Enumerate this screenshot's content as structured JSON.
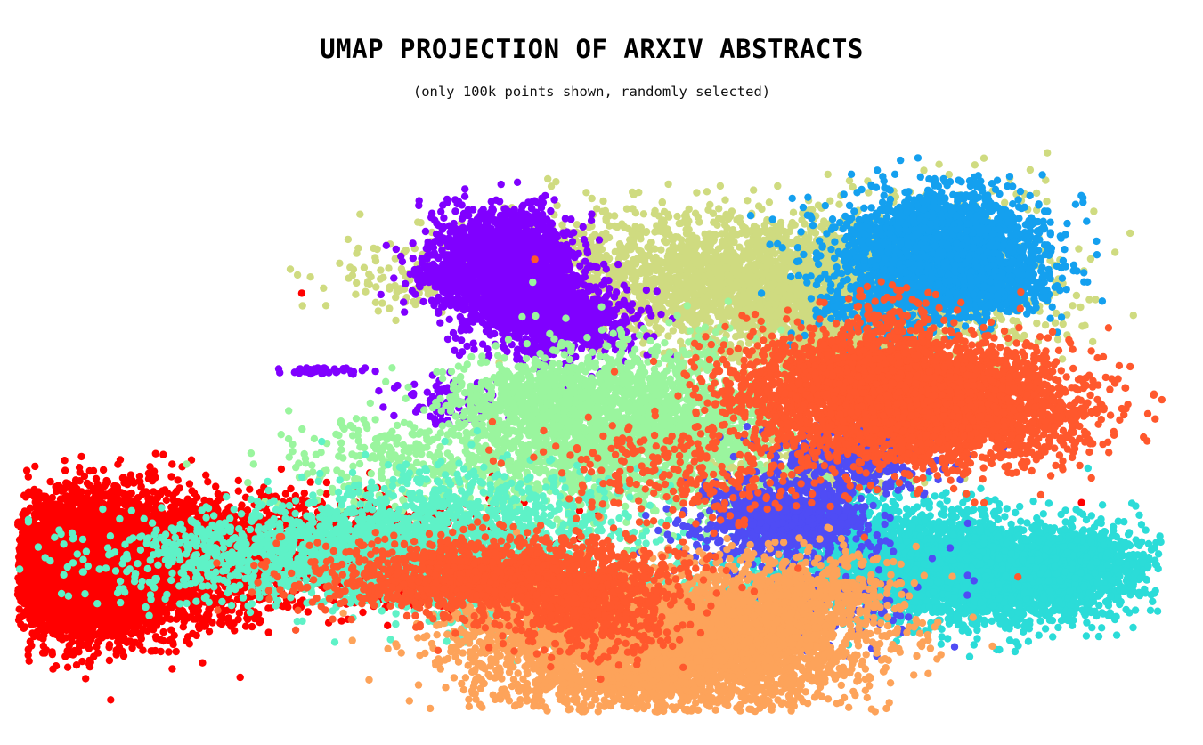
{
  "chart_data": {
    "type": "scatter",
    "title": "UMAP PROJECTION OF ARXIV ABSTRACTS",
    "subtitle": "(only 100k points shown, randomly selected)",
    "xlabel": "",
    "ylabel": "",
    "grid": false,
    "axes_visible": false,
    "legend": "none",
    "xlim": [
      -3.0,
      10.5
    ],
    "ylim": [
      -2.0,
      6.3
    ],
    "series": [
      {
        "color": "#8000ff",
        "points": [
          [
            2.93,
            4.95
          ],
          [
            2.53,
            4.9
          ],
          [
            2.99,
            4.16
          ],
          [
            2.23,
            4.53
          ],
          [
            2.1,
            3.03
          ],
          [
            2.42,
            2.87
          ],
          [
            0.33,
            3.04
          ]
        ],
        "clusters": [
          [
            2.7,
            4.65,
            0.42,
            0.38,
            1700
          ],
          [
            3.45,
            3.8,
            0.45,
            0.28,
            700
          ],
          [
            3.0,
            4.1,
            0.35,
            0.3,
            500
          ],
          [
            1.9,
            4.45,
            0.15,
            0.08,
            60
          ],
          [
            0.6,
            3.05,
            0.25,
            0.03,
            40
          ],
          [
            2.1,
            2.6,
            0.35,
            0.2,
            90
          ]
        ]
      },
      {
        "color": "#4f4cf5",
        "points": [
          [
            6.0,
            0.56
          ],
          [
            6.2,
            -0.57
          ],
          [
            4.3,
            -1.05
          ],
          [
            8.0,
            0.43
          ]
        ],
        "clusters": [
          [
            6.05,
            0.86,
            0.5,
            0.28,
            1000
          ],
          [
            6.9,
            1.75,
            0.5,
            0.25,
            400
          ],
          [
            6.5,
            -0.3,
            0.7,
            0.35,
            160
          ]
        ]
      },
      {
        "color": "#14a0ef",
        "points": [
          [
            8.0,
            5.85
          ],
          [
            8.5,
            4.25
          ],
          [
            7.5,
            3.8
          ]
        ],
        "clusters": [
          [
            7.9,
            4.95,
            0.6,
            0.38,
            1800
          ],
          [
            8.35,
            4.25,
            0.45,
            0.25,
            500
          ],
          [
            7.3,
            4.1,
            0.45,
            0.35,
            400
          ]
        ]
      },
      {
        "color": "#2bdcd8",
        "points": [
          [
            6.55,
            0.7
          ],
          [
            6.0,
            -0.05
          ],
          [
            9.5,
            0.55
          ]
        ],
        "clusters": [
          [
            8.4,
            0.05,
            0.85,
            0.36,
            3000
          ],
          [
            7.0,
            0.4,
            0.7,
            0.4,
            1000
          ],
          [
            9.5,
            0.2,
            0.45,
            0.25,
            500
          ]
        ]
      },
      {
        "color": "#5ef2c7",
        "points": [
          [
            -0.45,
            1.0
          ],
          [
            4.7,
            1.35
          ],
          [
            3.3,
            0.4
          ]
        ],
        "clusters": [
          [
            0.8,
            0.3,
            1.4,
            0.35,
            1500
          ],
          [
            2.3,
            0.8,
            1.0,
            0.45,
            800
          ],
          [
            3.8,
            -0.4,
            0.9,
            0.3,
            600
          ]
        ]
      },
      {
        "color": "#9af59e",
        "points": [
          [
            2.9,
            2.05
          ],
          [
            7.6,
            -0.65
          ],
          [
            1.3,
            0.95
          ]
        ],
        "clusters": [
          [
            4.3,
            2.2,
            0.85,
            0.6,
            2200
          ],
          [
            3.1,
            2.65,
            0.5,
            0.25,
            500
          ],
          [
            2.2,
            1.7,
            1.0,
            0.4,
            500
          ]
        ]
      },
      {
        "color": "#cfdb80",
        "points": [
          [
            3.35,
            5.85
          ],
          [
            5.3,
            3.7
          ],
          [
            0.3,
            4.47
          ]
        ],
        "clusters": [
          [
            5.9,
            4.35,
            1.35,
            0.5,
            2800
          ],
          [
            6.5,
            3.6,
            0.6,
            0.4,
            600
          ],
          [
            7.6,
            4.4,
            0.9,
            0.8,
            300
          ],
          [
            3.4,
            4.8,
            0.75,
            0.3,
            200
          ],
          [
            1.8,
            4.4,
            0.6,
            0.25,
            120
          ],
          [
            6.2,
            1.5,
            0.6,
            0.25,
            250
          ]
        ]
      },
      {
        "color": "#fda35a",
        "points": [
          [
            4.6,
            -1.85
          ],
          [
            3.4,
            -1.5
          ],
          [
            7.0,
            -0.7
          ]
        ],
        "clusters": [
          [
            4.5,
            -1.1,
            1.1,
            0.5,
            3200
          ],
          [
            5.6,
            -0.7,
            0.8,
            0.45,
            1200
          ],
          [
            3.1,
            -0.6,
            0.6,
            0.3,
            400
          ],
          [
            6.4,
            -0.2,
            0.5,
            0.3,
            300
          ]
        ]
      },
      {
        "color": "#ff582d",
        "points": [
          [
            3.1,
            4.7
          ],
          [
            7.85,
            1.5
          ],
          [
            8.8,
            0.0
          ]
        ],
        "clusters": [
          [
            7.8,
            2.55,
            0.9,
            0.42,
            3200
          ],
          [
            6.6,
            2.85,
            0.7,
            0.4,
            1000
          ],
          [
            2.55,
            0.0,
            0.95,
            0.28,
            1600
          ],
          [
            3.8,
            -0.5,
            0.5,
            0.35,
            500
          ],
          [
            7.4,
            3.5,
            0.35,
            0.4,
            200
          ],
          [
            5.0,
            1.6,
            0.9,
            0.4,
            300
          ]
        ]
      },
      {
        "color": "#ff0000",
        "points": [
          [
            0.35,
            4.2
          ],
          [
            9.55,
            1.1
          ],
          [
            2.6,
            1.5
          ],
          [
            4.5,
            -0.75
          ]
        ],
        "clusters": [
          [
            -2.15,
            0.15,
            0.5,
            0.48,
            6000
          ],
          [
            -1.3,
            0.2,
            0.85,
            0.5,
            1800
          ],
          [
            0.4,
            0.6,
            1.1,
            0.3,
            900
          ],
          [
            1.7,
            0.05,
            0.7,
            0.25,
            500
          ],
          [
            3.3,
            -0.65,
            0.3,
            0.15,
            120
          ]
        ]
      }
    ]
  }
}
